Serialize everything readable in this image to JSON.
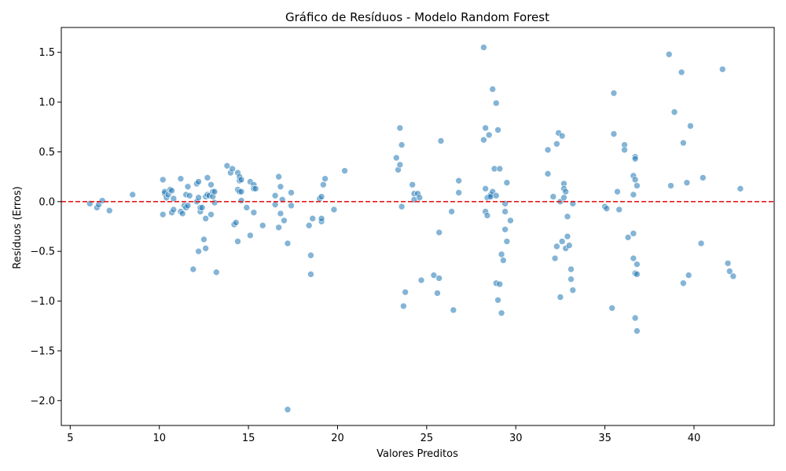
{
  "chart_data": {
    "type": "scatter",
    "title": "Gráfico de Resíduos - Modelo Random Forest",
    "xlabel": "Valores Preditos",
    "ylabel": "Resíduos (Erros)",
    "xlim": [
      4.5,
      44.5
    ],
    "ylim": [
      -2.25,
      1.75
    ],
    "x_ticks": [
      5,
      10,
      15,
      20,
      25,
      30,
      35,
      40
    ],
    "y_ticks": [
      1.5,
      1.0,
      0.5,
      0.0,
      -0.5,
      -1.0,
      -1.5,
      -2.0
    ],
    "x_tick_labels": [
      "5",
      "10",
      "15",
      "20",
      "25",
      "30",
      "35",
      "40"
    ],
    "y_tick_labels": [
      "1.5",
      "1.0",
      "0.5",
      "0.0",
      "−0.5",
      "−1.0",
      "−1.5",
      "−2.0"
    ],
    "reference_line": {
      "y": 0,
      "style": "dashed",
      "color": "#e41a1c"
    },
    "point_color": "#1f77b4",
    "grid": false,
    "points": [
      [
        6.1,
        -0.02
      ],
      [
        6.5,
        -0.06
      ],
      [
        6.6,
        -0.03
      ],
      [
        6.8,
        0.01
      ],
      [
        7.2,
        -0.09
      ],
      [
        8.5,
        0.07
      ],
      [
        10.2,
        0.22
      ],
      [
        10.2,
        -0.13
      ],
      [
        10.3,
        0.08
      ],
      [
        10.3,
        0.1
      ],
      [
        10.4,
        0.04
      ],
      [
        10.5,
        0.07
      ],
      [
        10.6,
        0.12
      ],
      [
        10.7,
        0.11
      ],
      [
        10.7,
        -0.11
      ],
      [
        10.8,
        0.03
      ],
      [
        10.8,
        -0.08
      ],
      [
        11.2,
        0.23
      ],
      [
        11.2,
        -0.1
      ],
      [
        11.3,
        -0.12
      ],
      [
        11.4,
        -0.04
      ],
      [
        11.5,
        0.07
      ],
      [
        11.5,
        -0.06
      ],
      [
        11.6,
        -0.04
      ],
      [
        11.6,
        0.15
      ],
      [
        11.7,
        0.06
      ],
      [
        11.9,
        -0.68
      ],
      [
        12.1,
        0.0
      ],
      [
        12.1,
        0.18
      ],
      [
        12.2,
        0.2
      ],
      [
        12.2,
        -0.5
      ],
      [
        12.2,
        0.04
      ],
      [
        12.3,
        -0.1
      ],
      [
        12.3,
        -0.06
      ],
      [
        12.4,
        -0.06
      ],
      [
        12.5,
        -0.38
      ],
      [
        12.6,
        -0.47
      ],
      [
        12.6,
        0.05
      ],
      [
        12.6,
        -0.17
      ],
      [
        12.7,
        0.24
      ],
      [
        12.7,
        0.07
      ],
      [
        12.8,
        0.06
      ],
      [
        12.9,
        0.17
      ],
      [
        12.9,
        -0.13
      ],
      [
        13.0,
        0.1
      ],
      [
        13.0,
        0.05
      ],
      [
        13.1,
        -0.01
      ],
      [
        13.1,
        0.1
      ],
      [
        13.2,
        -0.71
      ],
      [
        13.8,
        0.36
      ],
      [
        14.0,
        0.29
      ],
      [
        14.1,
        0.33
      ],
      [
        14.2,
        -0.23
      ],
      [
        14.3,
        -0.21
      ],
      [
        14.4,
        0.29
      ],
      [
        14.4,
        -0.4
      ],
      [
        14.4,
        0.12
      ],
      [
        14.5,
        0.21
      ],
      [
        14.5,
        0.1
      ],
      [
        14.5,
        0.25
      ],
      [
        14.6,
        0.22
      ],
      [
        14.6,
        0.1
      ],
      [
        14.6,
        0.01
      ],
      [
        14.9,
        -0.06
      ],
      [
        15.1,
        0.2
      ],
      [
        15.1,
        -0.34
      ],
      [
        15.3,
        0.17
      ],
      [
        15.3,
        -0.11
      ],
      [
        15.3,
        0.13
      ],
      [
        15.4,
        0.13
      ],
      [
        15.8,
        -0.24
      ],
      [
        16.5,
        0.06
      ],
      [
        16.5,
        -0.03
      ],
      [
        16.7,
        0.25
      ],
      [
        16.7,
        -0.26
      ],
      [
        16.8,
        0.15
      ],
      [
        16.8,
        -0.12
      ],
      [
        16.9,
        0.02
      ],
      [
        17.0,
        -0.19
      ],
      [
        17.2,
        -0.42
      ],
      [
        17.2,
        -2.09
      ],
      [
        17.4,
        -0.04
      ],
      [
        17.4,
        0.09
      ],
      [
        18.4,
        -0.24
      ],
      [
        18.5,
        -0.54
      ],
      [
        18.5,
        -0.73
      ],
      [
        18.6,
        -0.17
      ],
      [
        19.0,
        0.03
      ],
      [
        19.1,
        0.05
      ],
      [
        19.1,
        -0.2
      ],
      [
        19.1,
        -0.17
      ],
      [
        19.2,
        0.17
      ],
      [
        19.3,
        0.23
      ],
      [
        19.8,
        -0.08
      ],
      [
        20.4,
        0.31
      ],
      [
        23.3,
        0.44
      ],
      [
        23.4,
        0.32
      ],
      [
        23.5,
        0.37
      ],
      [
        23.5,
        0.74
      ],
      [
        23.6,
        0.57
      ],
      [
        23.6,
        -0.05
      ],
      [
        23.7,
        -1.05
      ],
      [
        23.8,
        -0.91
      ],
      [
        24.2,
        0.17
      ],
      [
        24.3,
        0.08
      ],
      [
        24.3,
        0.02
      ],
      [
        24.5,
        0.08
      ],
      [
        24.6,
        0.04
      ],
      [
        24.7,
        -0.79
      ],
      [
        25.4,
        -0.74
      ],
      [
        25.6,
        -0.92
      ],
      [
        25.7,
        -0.31
      ],
      [
        25.7,
        -0.77
      ],
      [
        25.8,
        0.61
      ],
      [
        26.4,
        -0.1
      ],
      [
        26.5,
        -1.09
      ],
      [
        26.8,
        0.21
      ],
      [
        26.8,
        0.09
      ],
      [
        28.2,
        1.55
      ],
      [
        28.2,
        0.62
      ],
      [
        28.3,
        0.74
      ],
      [
        28.3,
        0.13
      ],
      [
        28.3,
        -0.1
      ],
      [
        28.4,
        -0.14
      ],
      [
        28.4,
        0.04
      ],
      [
        28.5,
        0.67
      ],
      [
        28.5,
        0.05
      ],
      [
        28.6,
        0.07
      ],
      [
        28.6,
        0.05
      ],
      [
        28.7,
        0.1
      ],
      [
        28.7,
        1.13
      ],
      [
        28.8,
        0.33
      ],
      [
        28.9,
        0.99
      ],
      [
        28.9,
        0.06
      ],
      [
        28.9,
        -0.82
      ],
      [
        29.0,
        0.72
      ],
      [
        29.0,
        -0.99
      ],
      [
        29.1,
        0.33
      ],
      [
        29.1,
        -0.83
      ],
      [
        29.2,
        -1.12
      ],
      [
        29.2,
        -0.53
      ],
      [
        29.3,
        -0.59
      ],
      [
        29.4,
        -0.02
      ],
      [
        29.4,
        -0.1
      ],
      [
        29.4,
        -0.28
      ],
      [
        29.5,
        -0.4
      ],
      [
        29.5,
        0.19
      ],
      [
        29.7,
        -0.19
      ],
      [
        31.8,
        0.52
      ],
      [
        31.8,
        0.28
      ],
      [
        32.1,
        0.05
      ],
      [
        32.2,
        -0.57
      ],
      [
        32.3,
        -0.45
      ],
      [
        32.3,
        0.58
      ],
      [
        32.4,
        0.69
      ],
      [
        32.5,
        -0.96
      ],
      [
        32.5,
        0.0
      ],
      [
        32.6,
        -0.4
      ],
      [
        32.6,
        0.66
      ],
      [
        32.7,
        0.18
      ],
      [
        32.7,
        0.04
      ],
      [
        32.7,
        0.13
      ],
      [
        32.8,
        0.1
      ],
      [
        32.8,
        -0.47
      ],
      [
        32.9,
        -0.15
      ],
      [
        32.9,
        -0.35
      ],
      [
        33.0,
        -0.44
      ],
      [
        33.1,
        -0.68
      ],
      [
        33.1,
        -0.78
      ],
      [
        33.2,
        -0.02
      ],
      [
        33.2,
        -0.89
      ],
      [
        35.0,
        -0.05
      ],
      [
        35.1,
        -0.07
      ],
      [
        35.4,
        -1.07
      ],
      [
        35.5,
        0.68
      ],
      [
        35.5,
        1.09
      ],
      [
        35.7,
        0.1
      ],
      [
        35.8,
        -0.08
      ],
      [
        36.1,
        0.57
      ],
      [
        36.1,
        0.52
      ],
      [
        36.3,
        -0.36
      ],
      [
        36.6,
        0.26
      ],
      [
        36.6,
        0.07
      ],
      [
        36.6,
        -0.57
      ],
      [
        36.6,
        -0.32
      ],
      [
        36.7,
        0.45
      ],
      [
        36.7,
        0.43
      ],
      [
        36.7,
        -0.72
      ],
      [
        36.7,
        -1.17
      ],
      [
        36.7,
        0.22
      ],
      [
        36.8,
        -0.73
      ],
      [
        36.8,
        -0.63
      ],
      [
        36.8,
        -1.3
      ],
      [
        36.8,
        0.16
      ],
      [
        38.6,
        1.48
      ],
      [
        38.7,
        0.16
      ],
      [
        38.9,
        0.9
      ],
      [
        39.3,
        1.3
      ],
      [
        39.4,
        0.59
      ],
      [
        39.4,
        -0.82
      ],
      [
        39.6,
        0.19
      ],
      [
        39.7,
        -0.74
      ],
      [
        39.8,
        0.76
      ],
      [
        40.4,
        -0.42
      ],
      [
        40.5,
        0.24
      ],
      [
        41.6,
        1.33
      ],
      [
        41.9,
        -0.62
      ],
      [
        42.0,
        -0.7
      ],
      [
        42.2,
        -0.75
      ],
      [
        42.6,
        0.13
      ]
    ]
  }
}
